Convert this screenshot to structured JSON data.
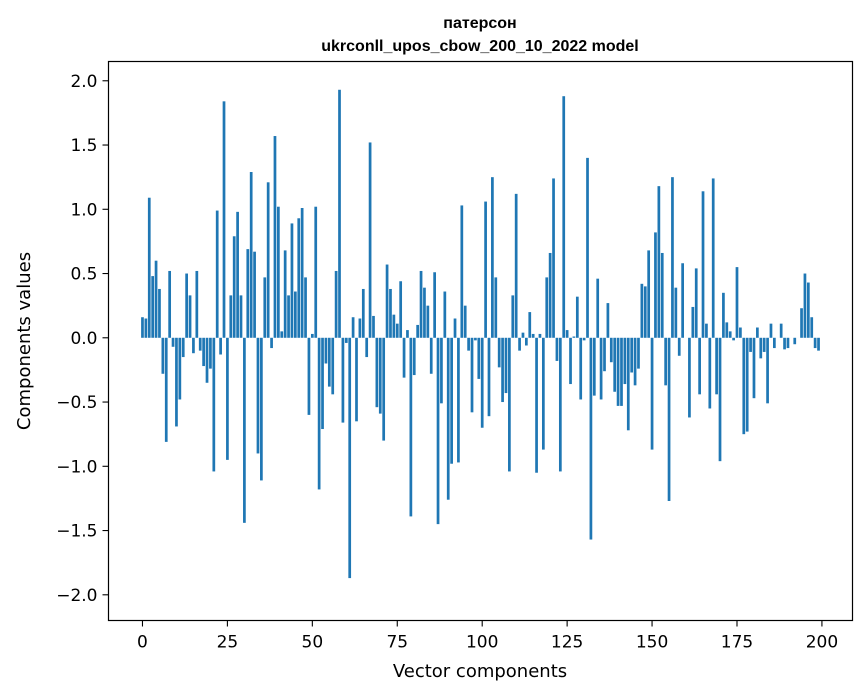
{
  "chart_data": {
    "type": "bar",
    "title_line1": "патерсон",
    "title_line2": "ukrconll_upos_cbow_200_10_2022 model",
    "xlabel": "Vector components",
    "ylabel": "Components values",
    "xlim": [
      -10,
      209
    ],
    "ylim": [
      -2.2,
      2.15
    ],
    "x_ticks": [
      0,
      25,
      50,
      75,
      100,
      125,
      150,
      175,
      200
    ],
    "x_tick_labels": [
      "0",
      "25",
      "50",
      "75",
      "100",
      "125",
      "150",
      "175",
      "200"
    ],
    "y_ticks": [
      2.0,
      1.5,
      1.0,
      0.5,
      0.0,
      -0.5,
      -1.0,
      -1.5,
      -2.0
    ],
    "y_tick_labels": [
      "2.0",
      "1.5",
      "1.0",
      "0.5",
      "0.0",
      "−0.5",
      "−1.0",
      "−1.5",
      "−2.0"
    ],
    "bar_color": "#1f77b4",
    "values": [
      0.16,
      0.15,
      1.09,
      0.48,
      0.6,
      0.38,
      -0.28,
      -0.81,
      0.52,
      -0.07,
      -0.69,
      -0.48,
      -0.15,
      0.5,
      0.33,
      -0.12,
      0.52,
      -0.1,
      -0.22,
      -0.35,
      -0.24,
      -1.04,
      0.99,
      -0.13,
      1.84,
      -0.95,
      0.33,
      0.79,
      0.98,
      0.33,
      -1.44,
      0.69,
      1.29,
      0.67,
      -0.9,
      -1.11,
      0.47,
      1.21,
      -0.08,
      1.57,
      1.02,
      0.05,
      0.68,
      0.33,
      0.89,
      0.36,
      0.93,
      1.01,
      0.47,
      -0.6,
      0.03,
      1.02,
      -1.18,
      -0.71,
      -0.2,
      -0.38,
      -0.44,
      0.52,
      1.93,
      -0.66,
      -0.04,
      -1.87,
      0.16,
      -0.65,
      0.15,
      0.38,
      -0.15,
      1.52,
      0.17,
      -0.54,
      -0.59,
      -0.8,
      0.57,
      0.38,
      0.18,
      0.11,
      0.44,
      -0.31,
      0.06,
      -1.39,
      -0.29,
      0.1,
      0.52,
      0.39,
      0.25,
      -0.28,
      0.51,
      -1.45,
      -0.51,
      0.36,
      -1.26,
      -0.98,
      0.15,
      -0.97,
      1.03,
      0.25,
      -0.1,
      -0.58,
      -0.02,
      -0.32,
      -0.7,
      1.06,
      -0.61,
      1.25,
      0.47,
      -0.23,
      -0.5,
      -0.43,
      -1.04,
      0.33,
      1.12,
      -0.1,
      0.04,
      -0.06,
      0.2,
      0.03,
      -1.05,
      0.03,
      -0.87,
      0.47,
      0.66,
      1.24,
      -0.18,
      -1.04,
      1.88,
      0.06,
      -0.36,
      0.01,
      0.32,
      -0.48,
      -0.02,
      1.4,
      -1.57,
      -0.45,
      0.46,
      -0.48,
      -0.26,
      0.27,
      -0.19,
      -0.42,
      -0.53,
      -0.53,
      -0.36,
      -0.72,
      -0.27,
      -0.37,
      -0.24,
      0.42,
      0.4,
      0.68,
      -0.87,
      0.82,
      1.18,
      0.66,
      -0.37,
      -1.27,
      1.25,
      0.39,
      -0.14,
      0.58,
      0.0,
      -0.62,
      0.24,
      0.54,
      -0.44,
      1.14,
      0.11,
      -0.55,
      1.24,
      -0.44,
      -0.96,
      0.35,
      0.12,
      0.05,
      -0.02,
      0.55,
      0.08,
      -0.75,
      -0.73,
      -0.11,
      -0.47,
      0.08,
      -0.16,
      -0.11,
      -0.51,
      0.11,
      -0.08,
      0.0,
      0.11,
      -0.09,
      -0.08,
      0.0,
      -0.05,
      0.0,
      0.23,
      0.5,
      0.43,
      0.16,
      -0.08,
      -0.1
    ]
  }
}
